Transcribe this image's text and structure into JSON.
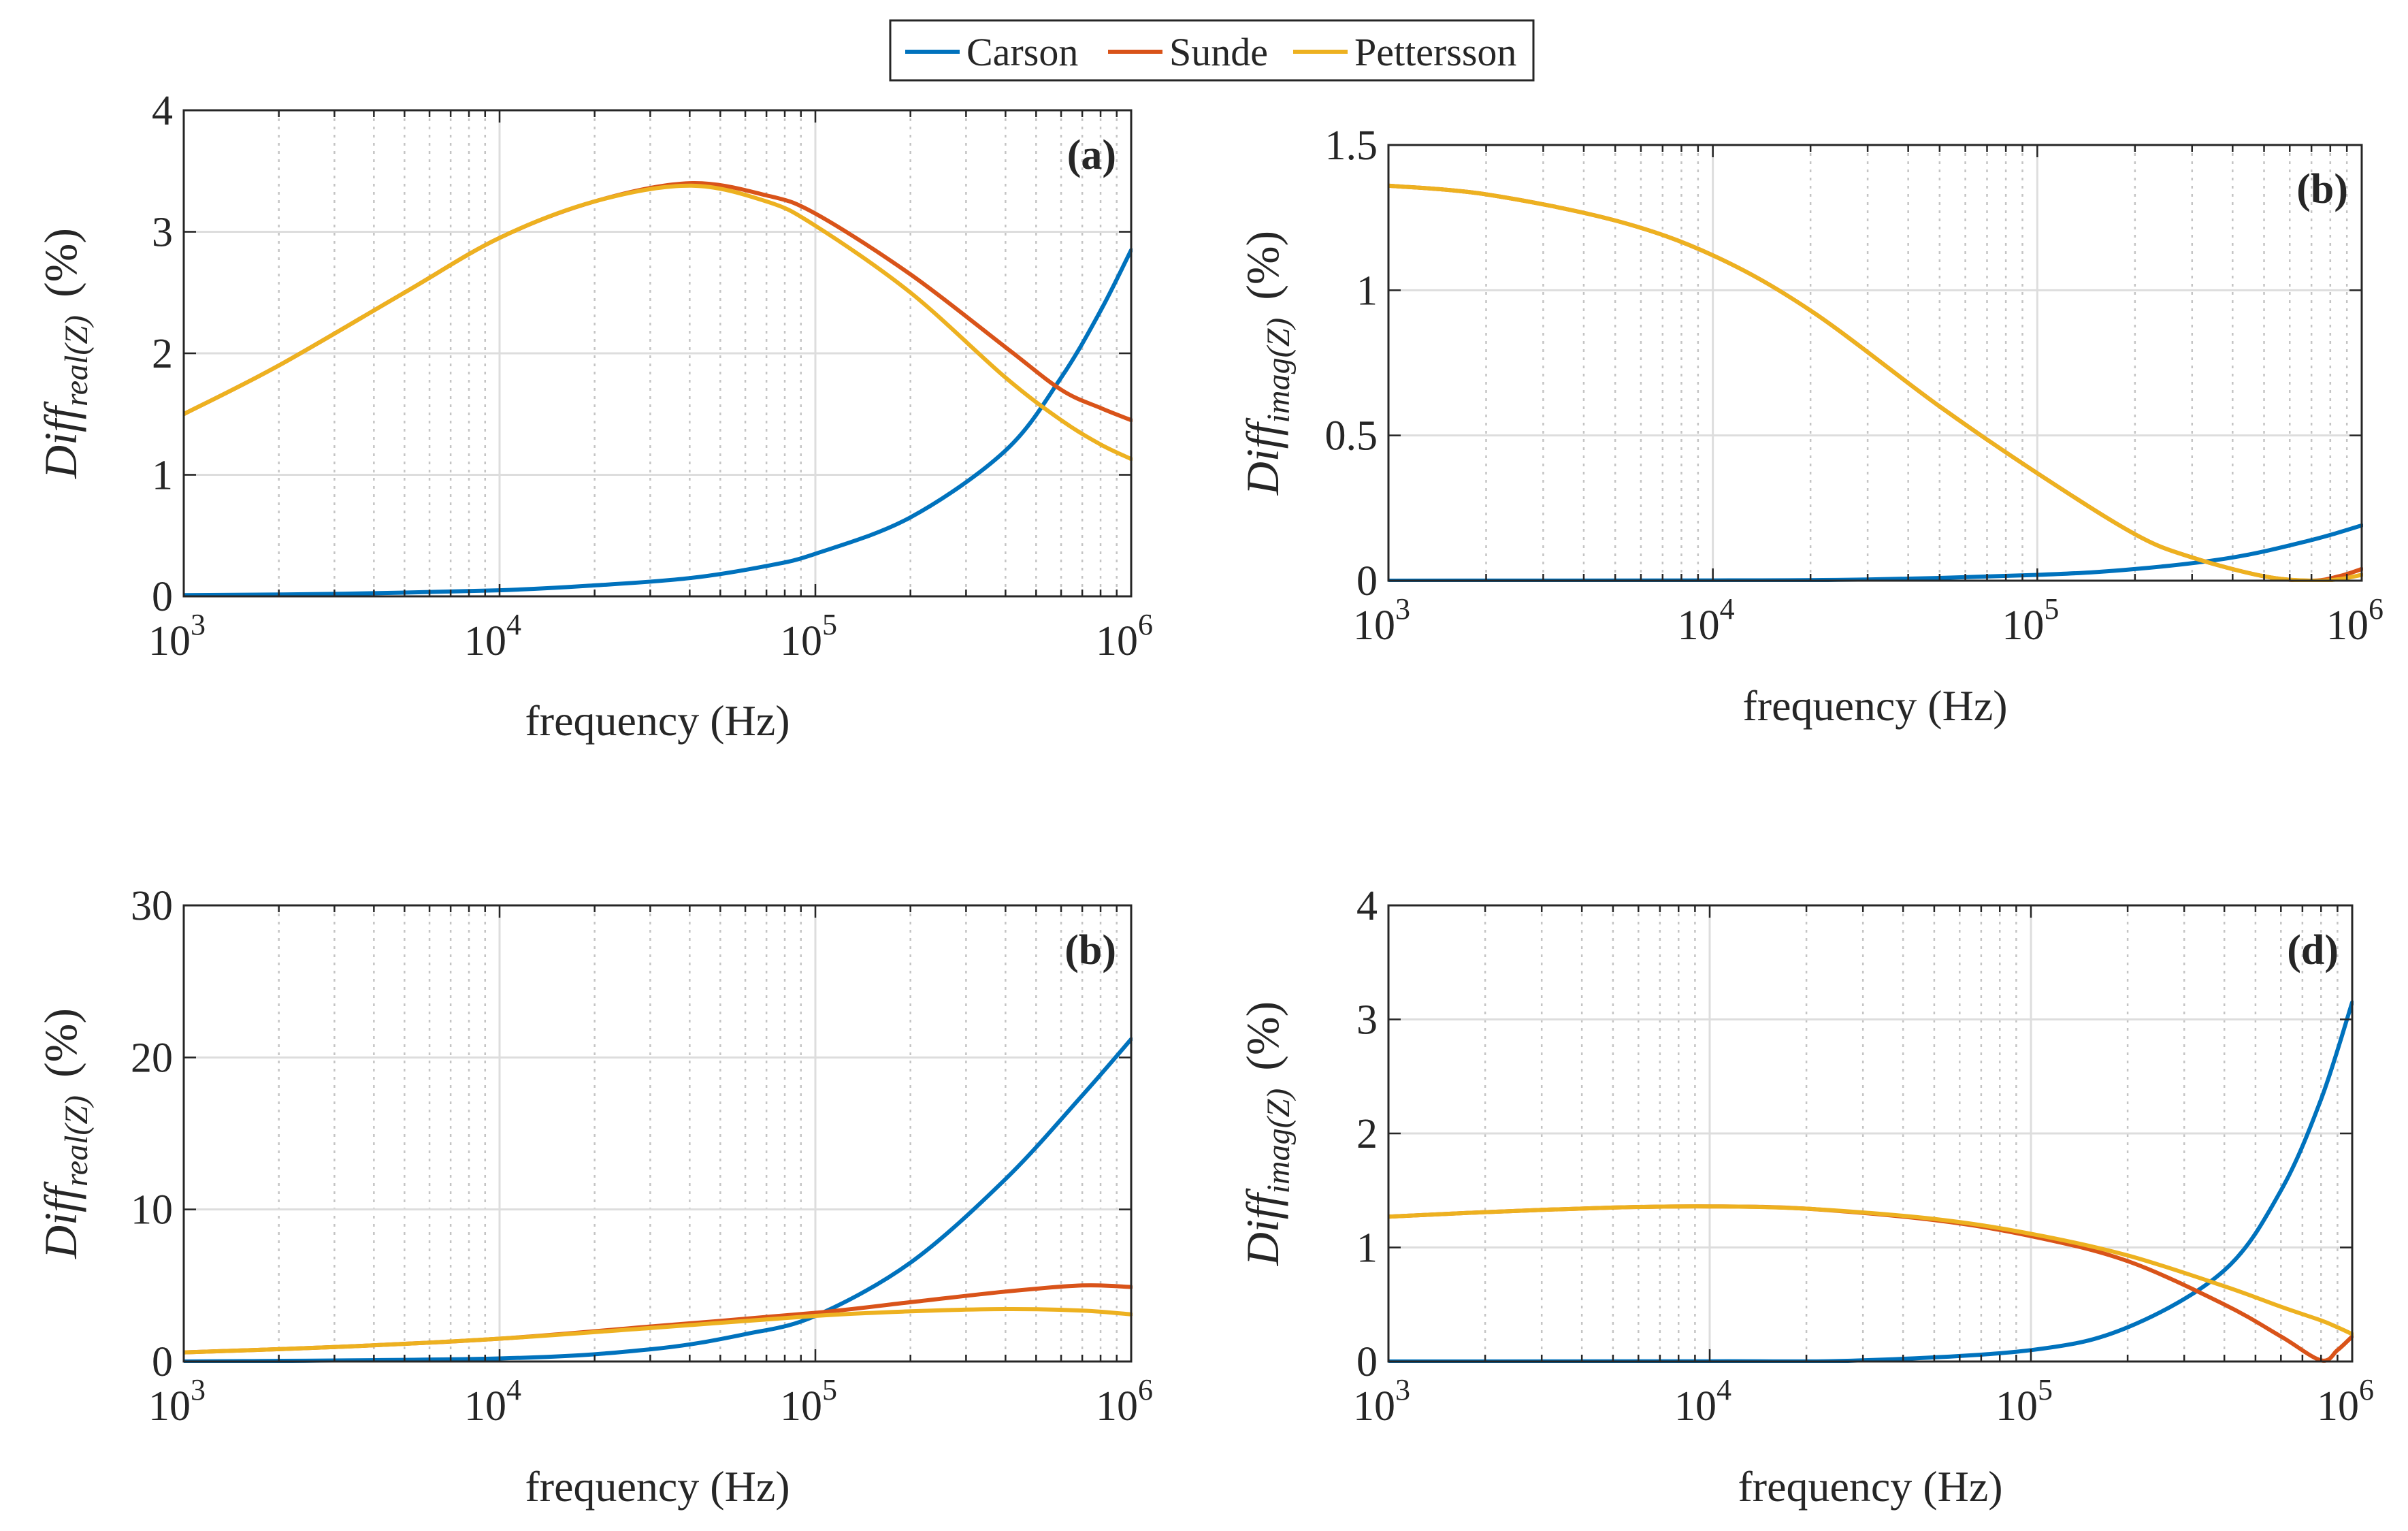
{
  "legend": {
    "entries": [
      {
        "name": "Carson",
        "color": "#0072BD"
      },
      {
        "name": "Sunde",
        "color": "#D95319"
      },
      {
        "name": "Pettersson",
        "color": "#EDB120"
      }
    ]
  },
  "chart_data": [
    {
      "type": "line",
      "label": "(a)",
      "xlabel": "frequency (Hz)",
      "ylabel": {
        "main": "Diff",
        "sub": "real(Z)",
        "unit": "(%)"
      },
      "xscale": "log",
      "xlim": [
        1000,
        1000000
      ],
      "ylim": [
        0,
        4
      ],
      "yticks": [
        0,
        1,
        2,
        3,
        4
      ],
      "yticklabels": [
        "0",
        "1",
        "2",
        "3",
        "4"
      ],
      "xticklabels": [
        {
          "base": "10",
          "exp": "3"
        },
        {
          "base": "10",
          "exp": "4"
        },
        {
          "base": "10",
          "exp": "5"
        },
        {
          "base": "10",
          "exp": "6"
        }
      ],
      "grid": true,
      "series": [
        {
          "name": "Carson",
          "color": "#0072BD",
          "x": [
            1000,
            3000,
            10000,
            20000,
            40000,
            70000,
            100000,
            200000,
            400000,
            600000,
            800000,
            1000000
          ],
          "y": [
            0.01,
            0.02,
            0.05,
            0.09,
            0.15,
            0.25,
            0.35,
            0.65,
            1.2,
            1.8,
            2.35,
            2.85
          ]
        },
        {
          "name": "Sunde",
          "color": "#D95319",
          "x": [
            1000,
            2000,
            5000,
            10000,
            20000,
            40000,
            70000,
            100000,
            200000,
            400000,
            600000,
            800000,
            1000000
          ],
          "y": [
            1.5,
            1.9,
            2.5,
            2.95,
            3.25,
            3.4,
            3.3,
            3.15,
            2.65,
            2.05,
            1.7,
            1.55,
            1.45
          ]
        },
        {
          "name": "Pettersson",
          "color": "#EDB120",
          "x": [
            1000,
            2000,
            5000,
            10000,
            20000,
            40000,
            70000,
            100000,
            200000,
            400000,
            600000,
            800000,
            1000000
          ],
          "y": [
            1.5,
            1.9,
            2.5,
            2.95,
            3.25,
            3.38,
            3.25,
            3.05,
            2.5,
            1.8,
            1.45,
            1.25,
            1.13
          ]
        }
      ]
    },
    {
      "type": "line",
      "label": "(b)",
      "xlabel": "frequency (Hz)",
      "ylabel": {
        "main": "Diff",
        "sub": "imag(Z)",
        "unit": "(%)"
      },
      "xscale": "log",
      "xlim": [
        1000,
        1000000
      ],
      "ylim": [
        0,
        1.5
      ],
      "yticks": [
        0,
        0.5,
        1,
        1.5
      ],
      "yticklabels": [
        "0",
        "0.5",
        "1",
        "1.5"
      ],
      "xticklabels": [
        {
          "base": "10",
          "exp": "3"
        },
        {
          "base": "10",
          "exp": "4"
        },
        {
          "base": "10",
          "exp": "5"
        },
        {
          "base": "10",
          "exp": "6"
        }
      ],
      "grid": true,
      "series": [
        {
          "name": "Carson",
          "color": "#0072BD",
          "x": [
            1000,
            10000,
            30000,
            100000,
            200000,
            400000,
            700000,
            1000000
          ],
          "y": [
            0,
            0.001,
            0.004,
            0.02,
            0.04,
            0.08,
            0.14,
            0.19
          ]
        },
        {
          "name": "Sunde",
          "color": "#D95319",
          "x": [
            1000,
            2000,
            5000,
            10000,
            20000,
            50000,
            100000,
            200000,
            300000,
            500000,
            700000,
            850000,
            1000000
          ],
          "y": [
            1.36,
            1.33,
            1.24,
            1.12,
            0.93,
            0.6,
            0.37,
            0.16,
            0.08,
            0.015,
            0.0,
            0.015,
            0.04
          ]
        },
        {
          "name": "Pettersson",
          "color": "#EDB120",
          "x": [
            1000,
            2000,
            5000,
            10000,
            20000,
            50000,
            100000,
            200000,
            300000,
            500000,
            700000,
            850000,
            1000000
          ],
          "y": [
            1.36,
            1.33,
            1.24,
            1.12,
            0.93,
            0.6,
            0.37,
            0.16,
            0.08,
            0.015,
            0.0,
            0.005,
            0.02
          ]
        }
      ]
    },
    {
      "type": "line",
      "label": "(b)",
      "xlabel": "frequency (Hz)",
      "ylabel": {
        "main": "Diff",
        "sub": "real(Z)",
        "unit": "(%)"
      },
      "xscale": "log",
      "xlim": [
        1000,
        1000000
      ],
      "ylim": [
        0,
        30
      ],
      "yticks": [
        0,
        10,
        20,
        30
      ],
      "yticklabels": [
        "0",
        "10",
        "20",
        "30"
      ],
      "xticklabels": [
        {
          "base": "10",
          "exp": "3"
        },
        {
          "base": "10",
          "exp": "4"
        },
        {
          "base": "10",
          "exp": "5"
        },
        {
          "base": "10",
          "exp": "6"
        }
      ],
      "grid": true,
      "series": [
        {
          "name": "Carson",
          "color": "#0072BD",
          "x": [
            1000,
            10000,
            30000,
            60000,
            100000,
            200000,
            400000,
            700000,
            1000000
          ],
          "y": [
            0,
            0.2,
            0.8,
            1.8,
            3.0,
            6.5,
            12.0,
            17.5,
            21.2
          ]
        },
        {
          "name": "Sunde",
          "color": "#D95319",
          "x": [
            1000,
            3000,
            10000,
            30000,
            100000,
            200000,
            400000,
            700000,
            1000000
          ],
          "y": [
            0.6,
            0.95,
            1.5,
            2.3,
            3.2,
            3.9,
            4.6,
            5.0,
            4.9
          ]
        },
        {
          "name": "Pettersson",
          "color": "#EDB120",
          "x": [
            1000,
            3000,
            10000,
            30000,
            100000,
            200000,
            400000,
            700000,
            1000000
          ],
          "y": [
            0.6,
            0.95,
            1.5,
            2.2,
            3.0,
            3.3,
            3.45,
            3.35,
            3.1
          ]
        }
      ]
    },
    {
      "type": "line",
      "label": "(d)",
      "xlabel": "frequency (Hz)",
      "ylabel": {
        "main": "Diff",
        "sub": "imag(Z)",
        "unit": "(%)"
      },
      "xscale": "log",
      "xlim": [
        1000,
        1000000
      ],
      "ylim": [
        0,
        4
      ],
      "yticks": [
        0,
        1,
        2,
        3,
        4
      ],
      "yticklabels": [
        "0",
        "1",
        "2",
        "3",
        "4"
      ],
      "xticklabels": [
        {
          "base": "10",
          "exp": "3"
        },
        {
          "base": "10",
          "exp": "4"
        },
        {
          "base": "10",
          "exp": "5"
        },
        {
          "base": "10",
          "exp": "6"
        }
      ],
      "grid": true,
      "series": [
        {
          "name": "Carson",
          "color": "#0072BD",
          "x": [
            1000,
            10000,
            30000,
            100000,
            200000,
            400000,
            600000,
            800000,
            1000000
          ],
          "y": [
            0,
            0.002,
            0.01,
            0.1,
            0.3,
            0.8,
            1.5,
            2.3,
            3.15
          ]
        },
        {
          "name": "Sunde",
          "color": "#D95319",
          "x": [
            1000,
            2000,
            5000,
            10000,
            20000,
            50000,
            100000,
            200000,
            400000,
            600000,
            800000,
            900000,
            1000000
          ],
          "y": [
            1.27,
            1.31,
            1.35,
            1.36,
            1.34,
            1.24,
            1.1,
            0.88,
            0.5,
            0.22,
            0.01,
            0.1,
            0.22
          ]
        },
        {
          "name": "Pettersson",
          "color": "#EDB120",
          "x": [
            1000,
            2000,
            5000,
            10000,
            20000,
            50000,
            100000,
            200000,
            400000,
            600000,
            800000,
            900000,
            1000000
          ],
          "y": [
            1.27,
            1.31,
            1.35,
            1.36,
            1.34,
            1.25,
            1.12,
            0.93,
            0.66,
            0.48,
            0.36,
            0.3,
            0.24
          ]
        }
      ]
    }
  ]
}
